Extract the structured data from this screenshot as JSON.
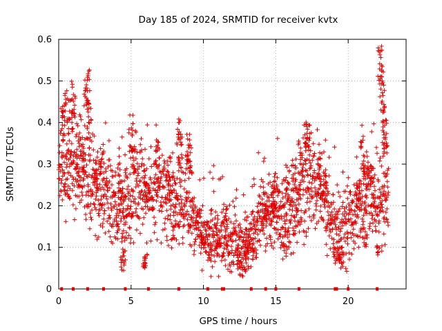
{
  "chart_data": {
    "type": "scatter",
    "title": "Day 185 of 2024, SRMTID for receiver kvtx",
    "xlabel": "GPS time / hours",
    "ylabel": "SRMTID / TECUs",
    "xlim": [
      0,
      24
    ],
    "ylim": [
      0,
      0.6
    ],
    "xticks": [
      0,
      5,
      10,
      15,
      20
    ],
    "xtick_labels": [
      "0",
      "5",
      "10",
      "15",
      "20"
    ],
    "yticks": [
      0,
      0.1,
      0.2,
      0.3,
      0.4,
      0.5,
      0.6
    ],
    "ytick_labels": [
      "0",
      "0.1",
      "0.2",
      "0.3",
      "0.4",
      "0.5",
      "0.6"
    ],
    "grid": true,
    "series": [
      {
        "name": "SRMTID",
        "color": "#e00000",
        "marker": "plus",
        "baseline": [
          [
            0.0,
            0.27
          ],
          [
            0.3,
            0.32
          ],
          [
            0.6,
            0.29
          ],
          [
            1.0,
            0.31
          ],
          [
            1.4,
            0.28
          ],
          [
            1.8,
            0.3
          ],
          [
            2.2,
            0.25
          ],
          [
            2.6,
            0.24
          ],
          [
            3.0,
            0.23
          ],
          [
            3.5,
            0.21
          ],
          [
            4.0,
            0.19
          ],
          [
            4.5,
            0.17
          ],
          [
            5.0,
            0.22
          ],
          [
            5.5,
            0.25
          ],
          [
            6.0,
            0.21
          ],
          [
            6.5,
            0.22
          ],
          [
            7.0,
            0.23
          ],
          [
            7.5,
            0.21
          ],
          [
            8.0,
            0.22
          ],
          [
            8.5,
            0.21
          ],
          [
            9.0,
            0.18
          ],
          [
            9.5,
            0.15
          ],
          [
            10.0,
            0.13
          ],
          [
            10.5,
            0.12
          ],
          [
            11.0,
            0.13
          ],
          [
            11.5,
            0.12
          ],
          [
            12.0,
            0.11
          ],
          [
            12.5,
            0.1
          ],
          [
            13.0,
            0.1
          ],
          [
            13.5,
            0.14
          ],
          [
            14.0,
            0.17
          ],
          [
            14.5,
            0.18
          ],
          [
            15.0,
            0.17
          ],
          [
            15.5,
            0.16
          ],
          [
            16.0,
            0.17
          ],
          [
            16.5,
            0.19
          ],
          [
            17.0,
            0.25
          ],
          [
            17.5,
            0.26
          ],
          [
            18.0,
            0.24
          ],
          [
            18.5,
            0.19
          ],
          [
            19.0,
            0.14
          ],
          [
            19.5,
            0.13
          ],
          [
            20.0,
            0.17
          ],
          [
            20.5,
            0.19
          ],
          [
            21.0,
            0.2
          ],
          [
            21.5,
            0.22
          ],
          [
            22.0,
            0.2
          ],
          [
            22.5,
            0.21
          ],
          [
            22.8,
            0.22
          ]
        ],
        "peaks": [
          [
            0.3,
            0.44
          ],
          [
            0.5,
            0.49
          ],
          [
            0.8,
            0.46
          ],
          [
            1.0,
            0.5
          ],
          [
            1.3,
            0.38
          ],
          [
            1.6,
            0.37
          ],
          [
            1.9,
            0.52
          ],
          [
            2.0,
            0.53
          ],
          [
            2.1,
            0.44
          ],
          [
            2.6,
            0.33
          ],
          [
            3.0,
            0.35
          ],
          [
            4.2,
            0.32
          ],
          [
            4.5,
            0.3
          ],
          [
            5.0,
            0.42
          ],
          [
            5.2,
            0.38
          ],
          [
            6.0,
            0.3
          ],
          [
            6.8,
            0.37
          ],
          [
            7.6,
            0.32
          ],
          [
            8.3,
            0.41
          ],
          [
            8.4,
            0.38
          ],
          [
            9.0,
            0.38
          ],
          [
            9.1,
            0.35
          ],
          [
            11.5,
            0.21
          ],
          [
            13.0,
            0.18
          ],
          [
            14.2,
            0.25
          ],
          [
            14.8,
            0.25
          ],
          [
            15.0,
            0.28
          ],
          [
            15.8,
            0.3
          ],
          [
            16.3,
            0.32
          ],
          [
            16.7,
            0.36
          ],
          [
            17.0,
            0.42
          ],
          [
            17.2,
            0.4
          ],
          [
            18.0,
            0.31
          ],
          [
            18.4,
            0.3
          ],
          [
            20.7,
            0.28
          ],
          [
            21.0,
            0.37
          ],
          [
            21.2,
            0.33
          ],
          [
            21.7,
            0.3
          ],
          [
            22.2,
            0.59
          ],
          [
            22.3,
            0.54
          ],
          [
            22.4,
            0.49
          ],
          [
            22.5,
            0.44
          ],
          [
            22.6,
            0.38
          ]
        ],
        "dips": [
          [
            4.4,
            0.04
          ],
          [
            4.5,
            0.06
          ],
          [
            5.9,
            0.04
          ],
          [
            6.0,
            0.05
          ],
          [
            8.0,
            0.12
          ],
          [
            9.9,
            0.09
          ],
          [
            10.5,
            0.06
          ],
          [
            11.0,
            0.07
          ],
          [
            12.4,
            0.06
          ],
          [
            12.6,
            0.05
          ],
          [
            13.0,
            0.05
          ],
          [
            13.4,
            0.07
          ],
          [
            15.6,
            0.07
          ],
          [
            19.1,
            0.07
          ],
          [
            19.4,
            0.06
          ],
          [
            19.5,
            0.05
          ],
          [
            21.2,
            0.1
          ],
          [
            22.1,
            0.08
          ]
        ],
        "zero_markers": [
          0.2,
          1.0,
          2.0,
          3.1,
          4.6,
          6.2,
          8.3,
          10.3,
          11.3,
          11.4,
          13.3,
          14.3,
          15.0,
          16.6,
          19.1,
          19.2,
          20.0,
          22.0
        ]
      }
    ]
  }
}
